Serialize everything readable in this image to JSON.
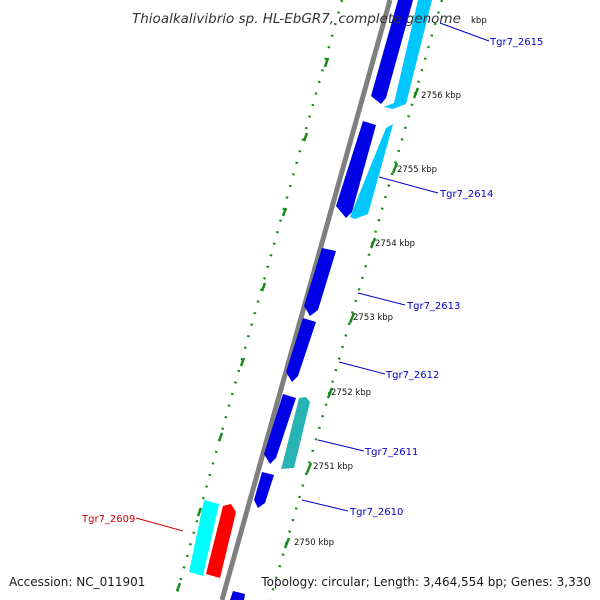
{
  "title": "Thioalkalivibrio sp. HL-EbGR7, complete genome",
  "footer": {
    "accession": "Accession: NC_011901",
    "summary": "Topology: circular; Length: 3,464,554 bp; Genes: 3,330"
  },
  "colors": {
    "backbone": "#7f7f7f",
    "forward_strand": "#00c8ff",
    "reverse_strand": "#0000e6",
    "highlight": "#ff0000",
    "teal": "#28b4b4",
    "cyan": "#00ffff",
    "tick": "#1a8a1a",
    "label_blue": "#0000c8",
    "label_red": "#d00000"
  },
  "scale_labels": [
    {
      "text": "kbp"
    },
    {
      "text": "2756 kbp"
    },
    {
      "text": "2755 kbp"
    },
    {
      "text": "2754 kbp"
    },
    {
      "text": "2753 kbp"
    },
    {
      "text": "2752 kbp"
    },
    {
      "text": "2751 kbp"
    },
    {
      "text": "2750 kbp"
    }
  ],
  "gene_labels": [
    {
      "text": "Tgr7_2615",
      "color": "blue"
    },
    {
      "text": "Tgr7_2614",
      "color": "blue"
    },
    {
      "text": "Tgr7_2613",
      "color": "blue"
    },
    {
      "text": "Tgr7_2612",
      "color": "blue"
    },
    {
      "text": "Tgr7_2611",
      "color": "blue"
    },
    {
      "text": "Tgr7_2610",
      "color": "blue"
    },
    {
      "text": "Tgr7_2609",
      "color": "red"
    }
  ]
}
